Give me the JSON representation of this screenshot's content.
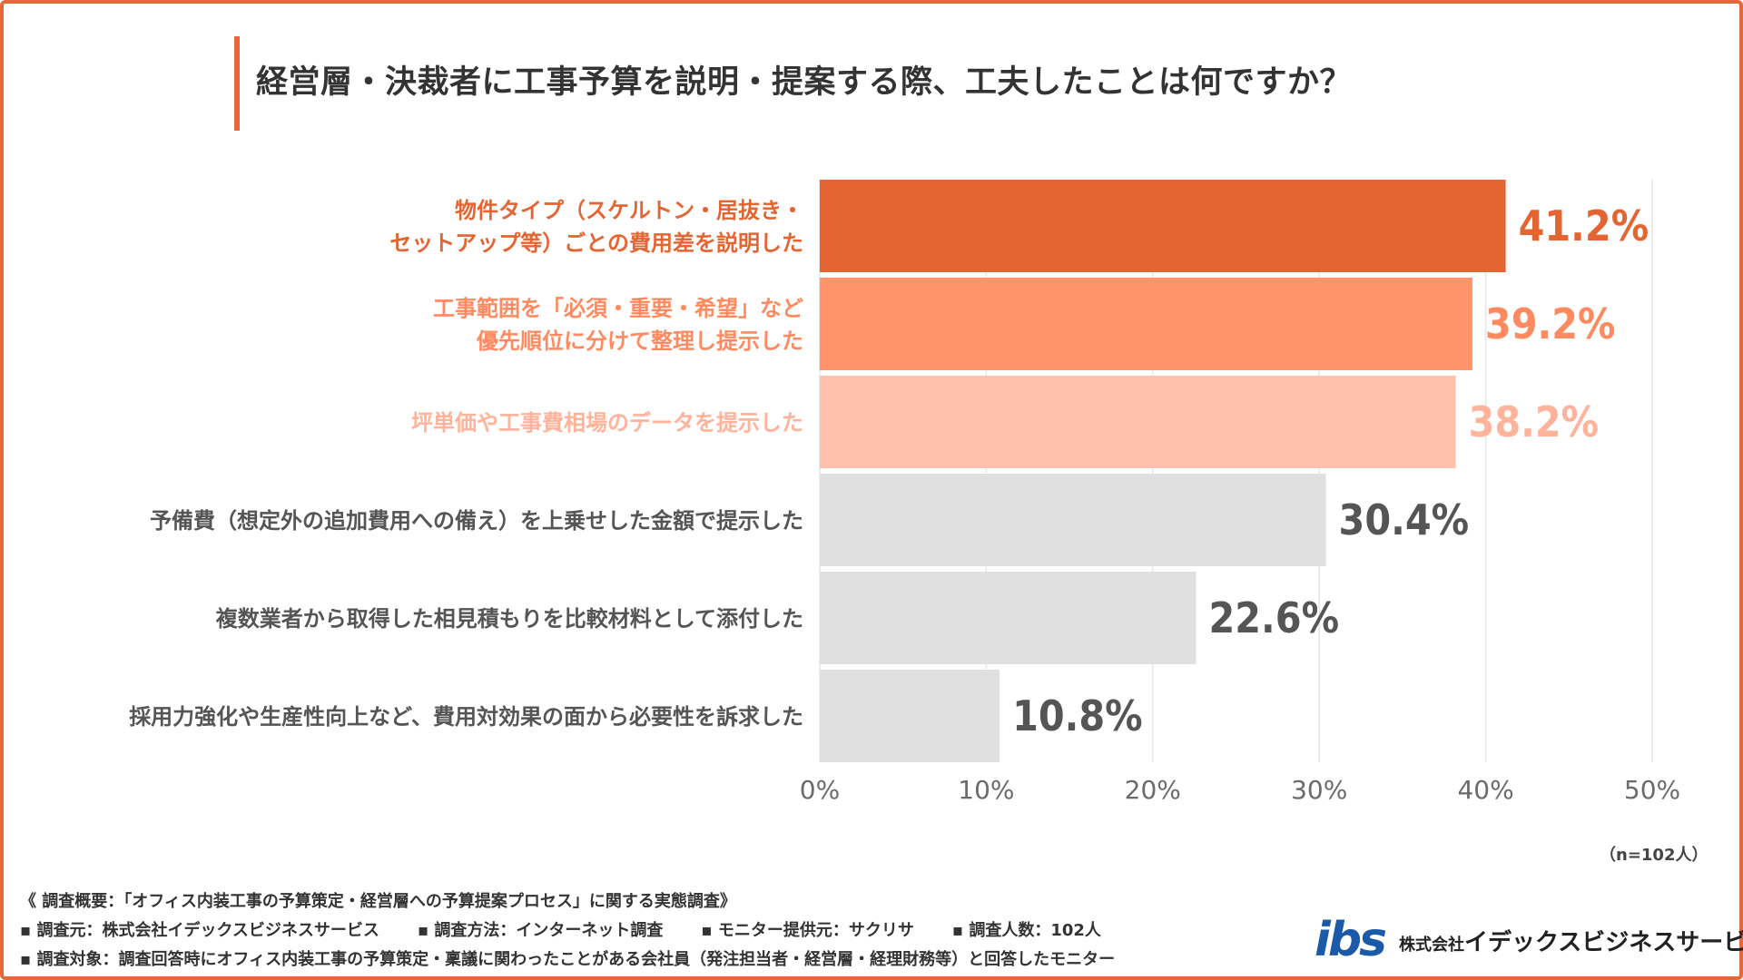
{
  "title": "経営層・決裁者に工事予算を説明・提案する際、工夫したことは何ですか？",
  "chart_data": {
    "type": "bar",
    "orientation": "horizontal",
    "categories": [
      [
        "物件タイプ（スケルトン・居抜き・",
        "セットアップ等）ごとの費用差を説明した"
      ],
      [
        "工事範囲を「必須・重要・希望」など",
        "優先順位に分けて整理し提示した"
      ],
      [
        "坪単価や工事費相場のデータを提示した"
      ],
      [
        "予備費（想定外の追加費用への備え）を上乗せした金額で提示した"
      ],
      [
        "複数業者から取得した相見積もりを比較材料として添付した"
      ],
      [
        "採用力強化や生産性向上など、費用対効果の面から必要性を訴求した"
      ]
    ],
    "values": [
      41.2,
      39.2,
      38.2,
      30.4,
      22.6,
      10.8
    ],
    "value_labels": [
      "41.2%",
      "39.2%",
      "38.2%",
      "30.4%",
      "22.6%",
      "10.8%"
    ],
    "bar_colors": [
      "#e56532",
      "#ff946b",
      "#ffc1ab",
      "#e0e0e0",
      "#e0e0e0",
      "#e0e0e0"
    ],
    "label_colors": [
      "#e56532",
      "#ff8a60",
      "#ffb39a",
      "#555555",
      "#555555",
      "#555555"
    ],
    "xlim": [
      0,
      50
    ],
    "xticks": [
      "0%",
      "10%",
      "20%",
      "30%",
      "40%",
      "50%"
    ],
    "grid": true
  },
  "sample_note": "（n=102人）",
  "footer": {
    "overview": "《 調査概要：「オフィス内装工事の予算策定・経営層への予算提案プロセス」に関する実態調査》",
    "items": [
      "▪ 調査元：株式会社イデックスビジネスサービス",
      "▪ 調査方法：インターネット調査",
      "▪ モニター提供元：サクリサ",
      "▪ 調査人数：102人"
    ],
    "target": "▪ 調査対象：調査回答時にオフィス内装工事の予算策定・稟議に関わったことがある会社員（発注担当者・経営層・経理財務等）と回答したモニター"
  },
  "logo": {
    "mark": "ibs",
    "company_prefix": "株式会社",
    "company_name": "イデックスビジネスサービス",
    "mark_color": "#1a5aa8"
  },
  "colors": {
    "accent": "#e8673a",
    "grid": "#e6e6e6"
  }
}
